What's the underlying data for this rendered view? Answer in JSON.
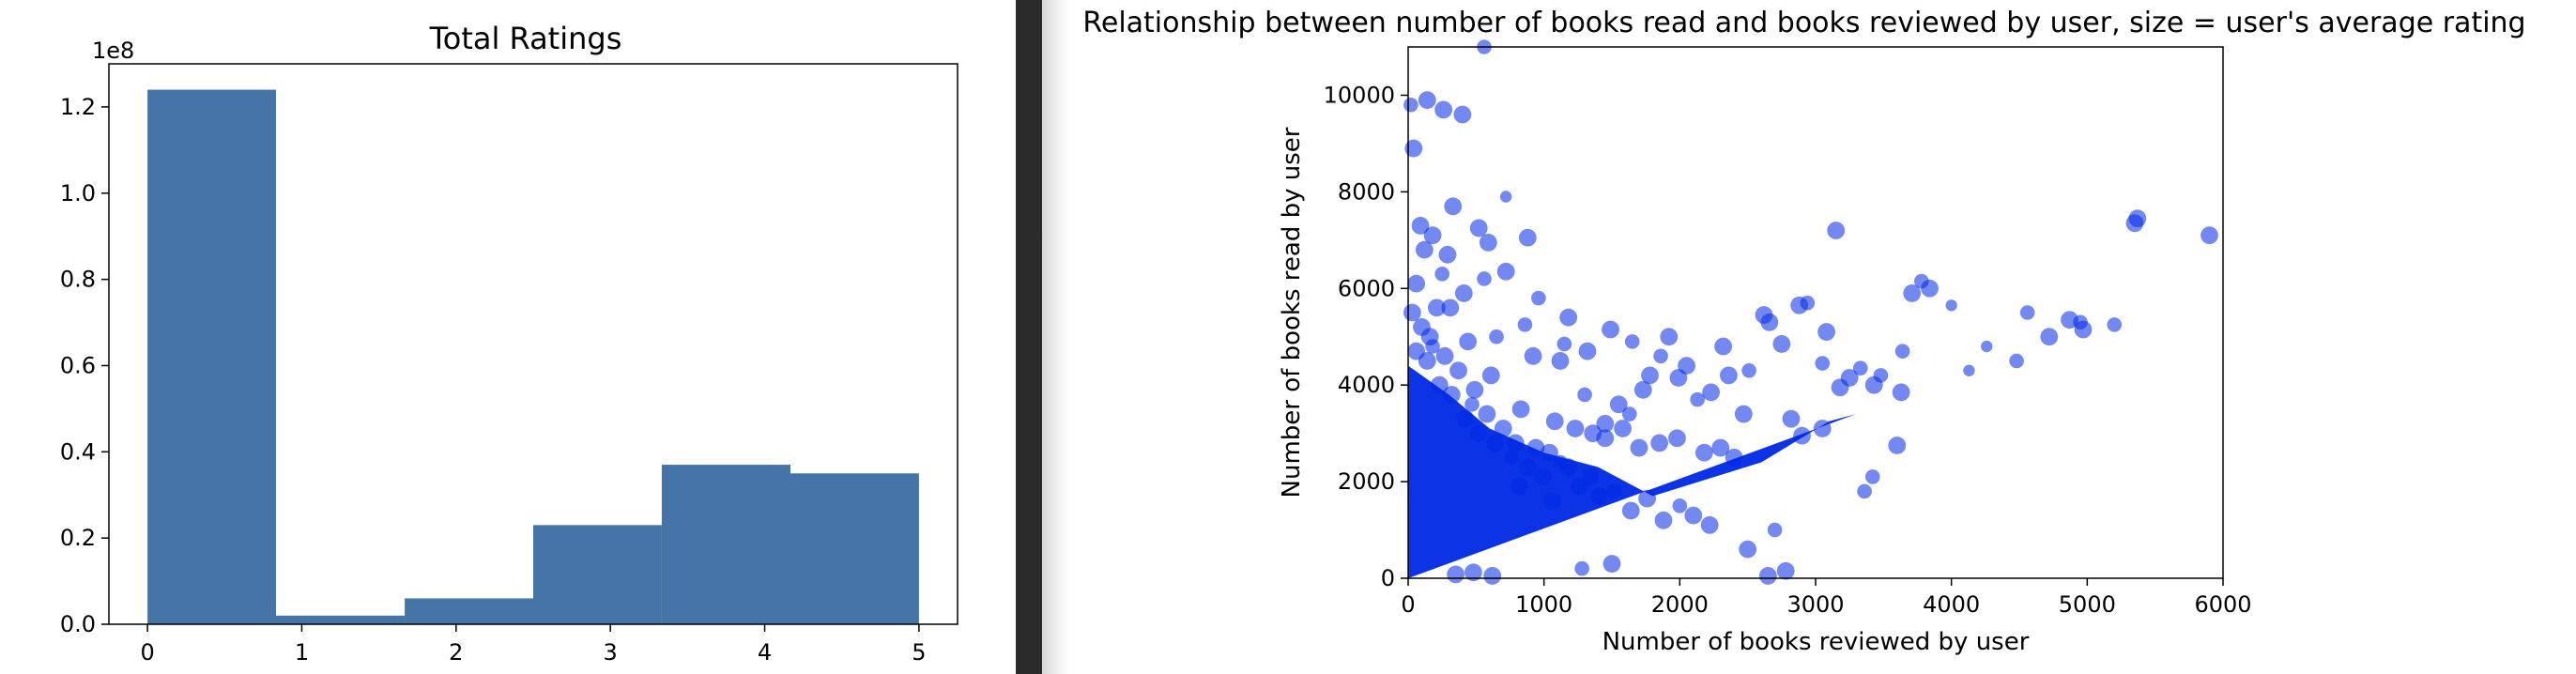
{
  "chart_data": [
    {
      "type": "bar",
      "title": "Total Ratings",
      "xlabel": "",
      "ylabel": "",
      "offset_text": "1e8",
      "y_scale_exponent": 8,
      "xlim": [
        -0.25,
        5.25
      ],
      "ylim": [
        0,
        1.3
      ],
      "grid": false,
      "bar_color": "#4575a8",
      "x_ticks": [
        0,
        1,
        2,
        3,
        4,
        5
      ],
      "x_tick_labels": [
        "0",
        "1",
        "2",
        "3",
        "4",
        "5"
      ],
      "y_ticks": [
        0.0,
        0.2,
        0.4,
        0.6,
        0.8,
        1.0,
        1.2
      ],
      "y_tick_labels": [
        "0.0",
        "0.2",
        "0.4",
        "0.6",
        "0.8",
        "1.0",
        "1.2"
      ],
      "bins": [
        {
          "x0": 0.0,
          "x1": 0.833,
          "value": 1.24
        },
        {
          "x0": 0.833,
          "x1": 1.667,
          "value": 0.02
        },
        {
          "x0": 1.667,
          "x1": 2.5,
          "value": 0.06
        },
        {
          "x0": 2.5,
          "x1": 3.333,
          "value": 0.23
        },
        {
          "x0": 3.333,
          "x1": 4.167,
          "value": 0.37
        },
        {
          "x0": 4.167,
          "x1": 5.0,
          "value": 0.35
        }
      ]
    },
    {
      "type": "scatter",
      "title": "Relationship between number of books read and books reviewed by user, size = user's average rating",
      "xlabel": "Number of books reviewed by user",
      "ylabel": "Number of books read by user",
      "xlim": [
        0,
        6000
      ],
      "ylim": [
        0,
        11000
      ],
      "grid": false,
      "point_color": "#0028e6",
      "x_ticks": [
        0,
        1000,
        2000,
        3000,
        4000,
        5000,
        6000
      ],
      "x_tick_labels": [
        "0",
        "1000",
        "2000",
        "3000",
        "4000",
        "5000",
        "6000"
      ],
      "y_ticks": [
        0,
        2000,
        4000,
        6000,
        8000,
        10000
      ],
      "y_tick_labels": [
        "0",
        "2000",
        "4000",
        "6000",
        "8000",
        "10000"
      ],
      "points": [
        [
          5900,
          7100,
          4
        ],
        [
          5370,
          7450,
          4
        ],
        [
          5350,
          7350,
          4
        ],
        [
          5200,
          5250,
          3
        ],
        [
          4970,
          5150,
          4
        ],
        [
          4950,
          5300,
          3
        ],
        [
          4870,
          5350,
          4
        ],
        [
          4720,
          5000,
          4
        ],
        [
          4560,
          5500,
          3
        ],
        [
          4480,
          4500,
          3
        ],
        [
          4260,
          4800,
          2
        ],
        [
          4130,
          4300,
          2
        ],
        [
          4000,
          5650,
          2
        ],
        [
          3840,
          6000,
          4
        ],
        [
          3780,
          6150,
          3
        ],
        [
          3710,
          5900,
          4
        ],
        [
          3640,
          4700,
          3
        ],
        [
          3630,
          3850,
          4
        ],
        [
          3600,
          2750,
          4
        ],
        [
          3480,
          4200,
          3
        ],
        [
          3430,
          4000,
          4
        ],
        [
          3360,
          1800,
          3
        ],
        [
          3420,
          2100,
          3
        ],
        [
          3330,
          4350,
          3
        ],
        [
          3250,
          4150,
          4
        ],
        [
          3180,
          3950,
          4
        ],
        [
          3150,
          7200,
          4
        ],
        [
          3080,
          5100,
          4
        ],
        [
          3050,
          4450,
          3
        ],
        [
          2940,
          5700,
          3
        ],
        [
          2880,
          5650,
          4
        ],
        [
          2820,
          3300,
          4
        ],
        [
          2750,
          4850,
          4
        ],
        [
          2660,
          5300,
          4
        ],
        [
          2620,
          5450,
          4
        ],
        [
          2510,
          4300,
          3
        ],
        [
          2470,
          3400,
          4
        ],
        [
          2360,
          4200,
          4
        ],
        [
          2320,
          4800,
          4
        ],
        [
          2230,
          3850,
          4
        ],
        [
          2130,
          3700,
          3
        ],
        [
          2050,
          4400,
          4
        ],
        [
          1990,
          4150,
          4
        ],
        [
          1920,
          5000,
          4
        ],
        [
          1860,
          4600,
          3
        ],
        [
          1780,
          4200,
          4
        ],
        [
          1730,
          3900,
          4
        ],
        [
          1650,
          4900,
          3
        ],
        [
          1630,
          3400,
          3
        ],
        [
          1550,
          3600,
          4
        ],
        [
          1490,
          5150,
          4
        ],
        [
          1450,
          3200,
          4
        ],
        [
          1320,
          4700,
          4
        ],
        [
          1300,
          3800,
          3
        ],
        [
          1230,
          3100,
          4
        ],
        [
          1180,
          5400,
          4
        ],
        [
          1150,
          4850,
          3
        ],
        [
          1120,
          4500,
          4
        ],
        [
          1080,
          3250,
          4
        ],
        [
          1040,
          2600,
          4
        ],
        [
          960,
          5800,
          3
        ],
        [
          920,
          4600,
          4
        ],
        [
          880,
          7050,
          4
        ],
        [
          860,
          5250,
          3
        ],
        [
          830,
          3500,
          4
        ],
        [
          790,
          2800,
          4
        ],
        [
          720,
          6350,
          4
        ],
        [
          650,
          5000,
          3
        ],
        [
          610,
          4200,
          4
        ],
        [
          590,
          6950,
          4
        ],
        [
          560,
          6200,
          3
        ],
        [
          520,
          7250,
          4
        ],
        [
          490,
          3900,
          4
        ],
        [
          440,
          4900,
          4
        ],
        [
          410,
          5900,
          4
        ],
        [
          400,
          9600,
          4
        ],
        [
          330,
          7700,
          4
        ],
        [
          290,
          6700,
          4
        ],
        [
          250,
          6300,
          3
        ],
        [
          210,
          5600,
          4
        ],
        [
          140,
          9900,
          4
        ],
        [
          180,
          7100,
          4
        ],
        [
          160,
          5000,
          4
        ],
        [
          120,
          6800,
          4
        ],
        [
          90,
          7300,
          4
        ],
        [
          40,
          8900,
          4
        ],
        [
          20,
          9800,
          3
        ],
        [
          60,
          6100,
          4
        ],
        [
          30,
          5500,
          4
        ],
        [
          560,
          11000,
          3
        ],
        [
          720,
          7900,
          2
        ],
        [
          310,
          5600,
          4
        ],
        [
          260,
          9700,
          4
        ],
        [
          2700,
          1000,
          3
        ],
        [
          2500,
          600,
          4
        ],
        [
          2220,
          1100,
          4
        ],
        [
          2100,
          1300,
          4
        ],
        [
          2000,
          1500,
          3
        ],
        [
          1880,
          1200,
          4
        ],
        [
          1760,
          1650,
          4
        ],
        [
          1640,
          1400,
          4
        ],
        [
          1520,
          1800,
          3
        ],
        [
          1410,
          1700,
          4
        ],
        [
          1340,
          2100,
          4
        ],
        [
          1260,
          1900,
          4
        ],
        [
          1180,
          2300,
          4
        ],
        [
          1120,
          2400,
          3
        ],
        [
          1060,
          1600,
          4
        ],
        [
          990,
          2100,
          4
        ],
        [
          940,
          2700,
          4
        ],
        [
          880,
          2300,
          4
        ],
        [
          820,
          1900,
          4
        ],
        [
          760,
          2500,
          3
        ],
        [
          700,
          3100,
          4
        ],
        [
          640,
          2800,
          4
        ],
        [
          580,
          3400,
          4
        ],
        [
          520,
          3000,
          4
        ],
        [
          470,
          3600,
          3
        ],
        [
          420,
          3300,
          4
        ],
        [
          370,
          4300,
          4
        ],
        [
          320,
          3800,
          4
        ],
        [
          270,
          4600,
          4
        ],
        [
          230,
          4000,
          4
        ],
        [
          180,
          4800,
          3
        ],
        [
          140,
          4500,
          4
        ],
        [
          100,
          5200,
          4
        ],
        [
          60,
          4700,
          4
        ],
        [
          2650,
          50,
          4
        ],
        [
          2780,
          150,
          4
        ],
        [
          3050,
          3100,
          4
        ],
        [
          2900,
          2950,
          4
        ],
        [
          2400,
          2500,
          4
        ],
        [
          2300,
          2700,
          4
        ],
        [
          2180,
          2600,
          4
        ],
        [
          1980,
          2900,
          4
        ],
        [
          1850,
          2800,
          4
        ],
        [
          1700,
          2700,
          4
        ],
        [
          1580,
          3100,
          4
        ],
        [
          1450,
          2900,
          4
        ],
        [
          1360,
          3000,
          4
        ],
        [
          620,
          50,
          4
        ],
        [
          480,
          120,
          4
        ],
        [
          350,
          80,
          4
        ],
        [
          1500,
          300,
          4
        ],
        [
          1280,
          200,
          3
        ]
      ]
    }
  ]
}
